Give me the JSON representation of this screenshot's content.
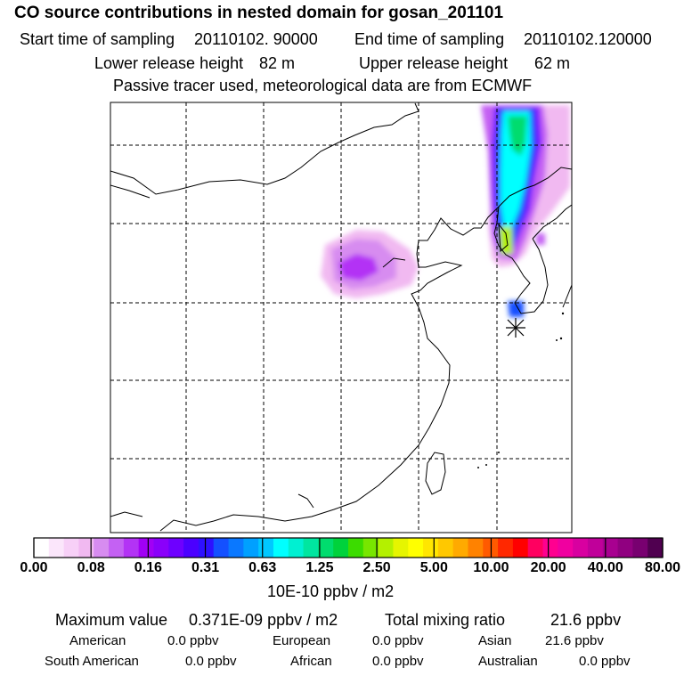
{
  "header": {
    "title": "CO  source contributions in nested domain for gosan_201101",
    "start_label": "Start time of sampling",
    "start_value": "20110102. 90000",
    "end_label": "End time of sampling",
    "end_value": "20110102.120000",
    "lower_label": "Lower release height",
    "lower_value": "82 m",
    "upper_label": "Upper release height",
    "upper_value": "62 m",
    "note": "Passive tracer used, meteorological data are from ECMWF"
  },
  "colorbar": {
    "colors": [
      "#ffffff",
      "#fbe6fb",
      "#f7d0f7",
      "#f1b9f1",
      "#d78cf0",
      "#c461f3",
      "#b333f5",
      "#a100f5",
      "#8a00fa",
      "#6e00ff",
      "#4b00ff",
      "#2e10ff",
      "#1450ff",
      "#0a78ff",
      "#00a0ff",
      "#00c8ff",
      "#00ffff",
      "#00f0d2",
      "#00e6a0",
      "#00dc6e",
      "#00d23c",
      "#3cdc00",
      "#78e600",
      "#b4f000",
      "#e6f500",
      "#ffff00",
      "#ffe600",
      "#ffc800",
      "#ffaa00",
      "#ff8200",
      "#ff5a00",
      "#ff2800",
      "#ff0000",
      "#ff0060",
      "#ff0090",
      "#f000a0",
      "#d800a0",
      "#c0009a",
      "#a80090",
      "#900080",
      "#780070",
      "#500050"
    ],
    "tick_labels": [
      "0.00",
      "0.08",
      "0.16",
      "0.31",
      "0.63",
      "1.25",
      "2.50",
      "5.00",
      "10.00",
      "20.00",
      "40.00",
      "80.00"
    ],
    "unit": "10E-10 ppbv / m2"
  },
  "footer": {
    "max_label": "Maximum value",
    "max_value": "0.371E-09 ppbv / m2",
    "total_label": "Total mixing ratio",
    "total_value": "21.6 ppbv",
    "regions": [
      {
        "name": "American",
        "value": "0.0 ppbv"
      },
      {
        "name": "European",
        "value": "0.0 ppbv"
      },
      {
        "name": "Asian",
        "value": "21.6 ppbv"
      },
      {
        "name": "South American",
        "value": "0.0 ppbv"
      },
      {
        "name": "African",
        "value": "0.0 ppbv"
      },
      {
        "name": "Australian",
        "value": "0.0 ppbv"
      }
    ]
  },
  "map": {
    "receptor_marker": "asterisk-marker"
  }
}
